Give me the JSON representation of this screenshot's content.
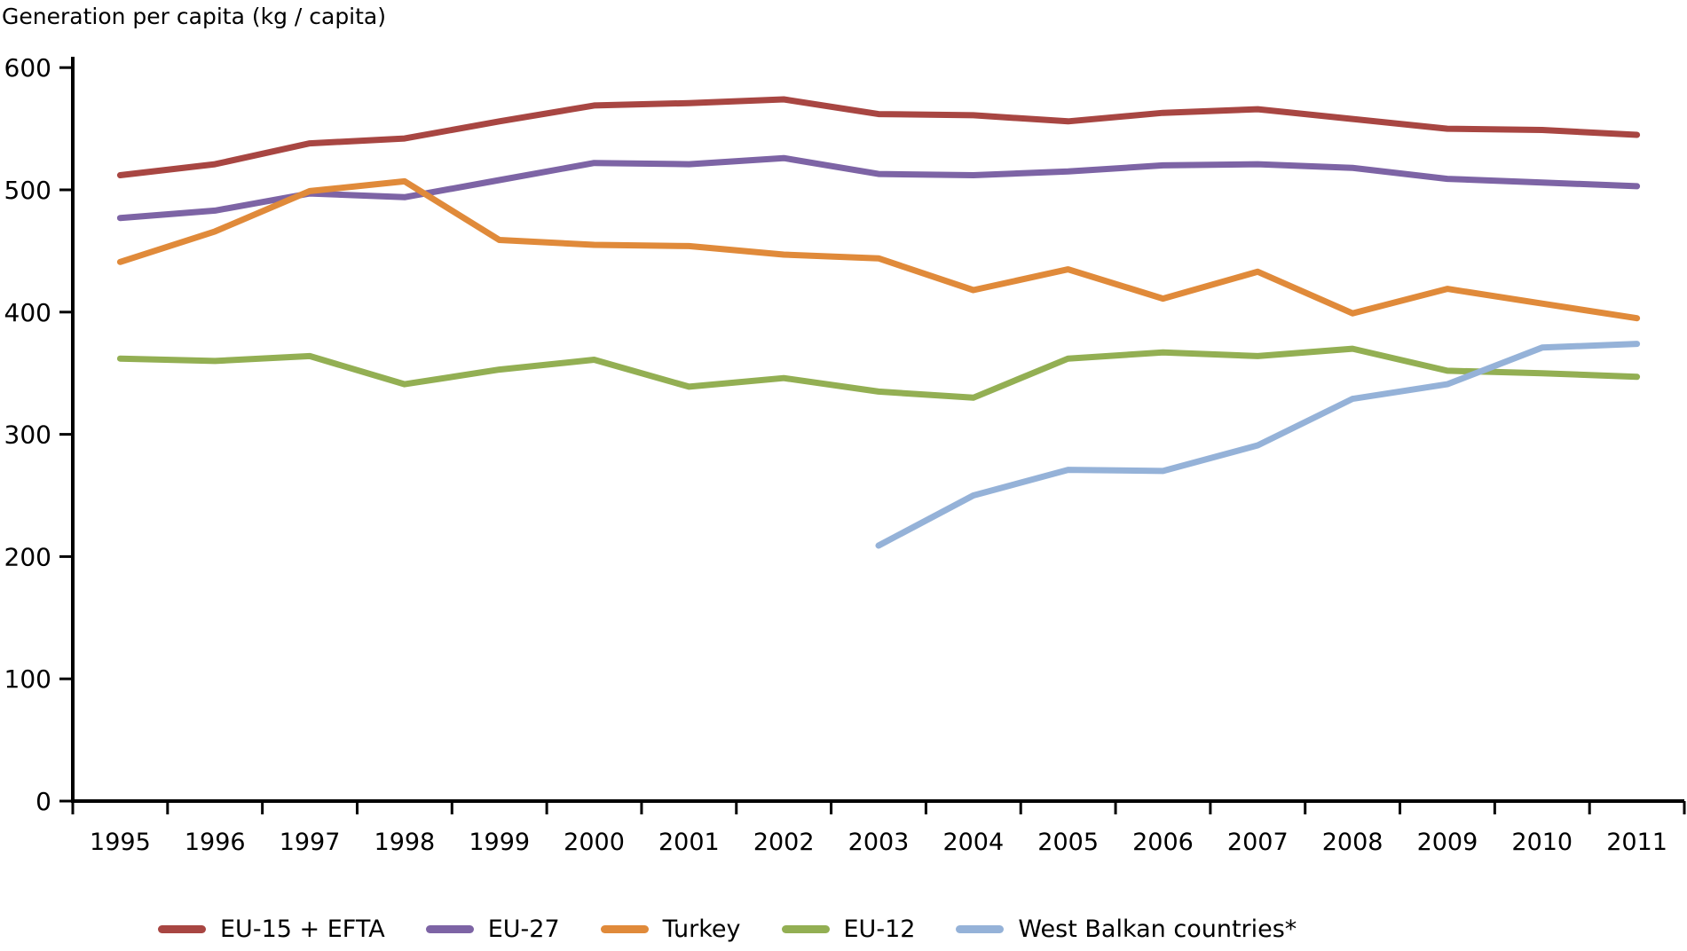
{
  "title": "Generation per capita (kg / capita)",
  "chart_data": {
    "type": "line",
    "title": "Generation per capita (kg / capita)",
    "xlabel": "",
    "ylabel": "kg / capita",
    "ylim": [
      0,
      600
    ],
    "ytick_interval": 100,
    "yticks": [
      0,
      100,
      200,
      300,
      400,
      500,
      600
    ],
    "grid": false,
    "legend_position": "bottom",
    "axis_color": "#000000",
    "categories": [
      1995,
      1996,
      1997,
      1998,
      1999,
      2000,
      2001,
      2002,
      2003,
      2004,
      2005,
      2006,
      2007,
      2008,
      2009,
      2010,
      2011
    ],
    "series": [
      {
        "name": "EU-15 + EFTA",
        "color": "#A84642",
        "values": [
          512,
          521,
          538,
          542,
          556,
          569,
          571,
          574,
          562,
          561,
          556,
          563,
          566,
          558,
          550,
          549,
          545
        ]
      },
      {
        "name": "EU-27",
        "color": "#7D64A5",
        "values": [
          477,
          483,
          497,
          494,
          508,
          522,
          521,
          526,
          513,
          512,
          515,
          520,
          521,
          518,
          509,
          506,
          503
        ]
      },
      {
        "name": "Turkey",
        "color": "#E08A3A",
        "values": [
          441,
          466,
          499,
          507,
          459,
          455,
          454,
          447,
          444,
          418,
          435,
          411,
          433,
          399,
          419,
          407,
          395
        ]
      },
      {
        "name": "EU-12",
        "color": "#93AF53",
        "values": [
          362,
          360,
          364,
          341,
          353,
          361,
          339,
          346,
          335,
          330,
          362,
          367,
          364,
          370,
          352,
          350,
          347
        ]
      },
      {
        "name": "West Balkan countries*",
        "color": "#95B2D8",
        "values": [
          null,
          null,
          null,
          null,
          null,
          null,
          null,
          null,
          209,
          250,
          271,
          270,
          291,
          329,
          341,
          371,
          374
        ]
      }
    ]
  }
}
